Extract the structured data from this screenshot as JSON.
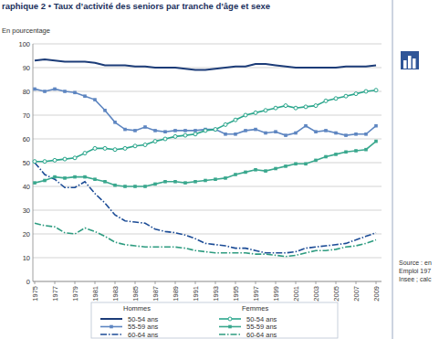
{
  "chart_data": {
    "type": "line",
    "title": "raphique 2 • Taux d’activité des seniors par tranche d’âge et sexe",
    "ylabel": "En pourcentage",
    "source": [
      "Source : en",
      "Emploi 197",
      "Insee ; calc"
    ],
    "x": [
      1975,
      1976,
      1977,
      1978,
      1979,
      1980,
      1981,
      1982,
      1983,
      1984,
      1985,
      1986,
      1987,
      1988,
      1989,
      1990,
      1991,
      1992,
      1993,
      1994,
      1995,
      1996,
      1997,
      1998,
      1999,
      2000,
      2001,
      2002,
      2003,
      2004,
      2005,
      2006,
      2007,
      2008,
      2009
    ],
    "xlim": [
      1975,
      2009
    ],
    "xticks": [
      1975,
      1977,
      1979,
      1981,
      1983,
      1985,
      1987,
      1989,
      1991,
      1993,
      1995,
      1997,
      1999,
      2001,
      2003,
      2005,
      2007,
      2009
    ],
    "ylim": [
      0,
      100
    ],
    "yticks": [
      0,
      10,
      20,
      30,
      40,
      50,
      60,
      70,
      80,
      90,
      100
    ],
    "grid": true,
    "series": [
      {
        "name": "50-54 ans",
        "group": "Hommes",
        "color": "#1c3c78",
        "marker": "none",
        "line_style": "solid",
        "values": [
          93,
          93.5,
          93,
          92.5,
          92.5,
          92.5,
          92,
          91,
          91,
          91,
          90.5,
          90.5,
          90,
          90,
          90,
          89.5,
          89,
          89,
          89.5,
          90,
          90.5,
          90.5,
          91.5,
          91.5,
          91,
          90.5,
          90,
          90,
          90,
          90,
          90,
          90.5,
          90.5,
          90.5,
          91
        ]
      },
      {
        "name": "55-59 ans",
        "group": "Hommes",
        "color": "#5e86c1",
        "marker": "square",
        "line_style": "solid",
        "values": [
          81,
          80,
          81,
          80,
          79.5,
          78,
          76.5,
          72,
          67,
          64,
          63.5,
          65,
          63.5,
          63,
          63.5,
          63.5,
          63.5,
          64,
          64,
          62,
          62,
          63.5,
          64,
          62.5,
          63,
          61.5,
          62.5,
          65.5,
          63,
          63.5,
          62.5,
          61.5,
          62,
          62,
          65.5
        ]
      },
      {
        "name": "60-64 ans",
        "group": "Hommes",
        "color": "#1c4c96",
        "marker": "none",
        "line_style": "dashdot",
        "values": [
          50,
          45,
          43,
          39.5,
          39.5,
          42,
          37,
          33,
          28,
          25.5,
          25,
          24.5,
          22,
          21,
          20.5,
          19.5,
          18,
          16,
          15.5,
          15,
          14,
          14,
          13,
          12,
          12,
          12,
          12.5,
          14,
          14.5,
          15,
          15.5,
          16,
          17.5,
          19,
          20.5
        ]
      },
      {
        "name": "50-54 ans",
        "group": "Femmes",
        "color": "#2aa68c",
        "marker": "circle",
        "line_style": "solid",
        "values": [
          50.5,
          50.5,
          51,
          51.5,
          52,
          54,
          56,
          56,
          55.5,
          56,
          57,
          57.5,
          59,
          60,
          61,
          61.5,
          62,
          63.5,
          64,
          66,
          68,
          70,
          71,
          72,
          73,
          74,
          73,
          73.5,
          74,
          76,
          77,
          78,
          79,
          80,
          80.5
        ]
      },
      {
        "name": "55-59 ans",
        "group": "Femmes",
        "color": "#3aa88e",
        "marker": "square",
        "line_style": "solid",
        "values": [
          41.5,
          42.5,
          44,
          43.5,
          44,
          44,
          43,
          42,
          40.5,
          40,
          40,
          40,
          41,
          42,
          42,
          41.5,
          42,
          42.5,
          43,
          43.5,
          45,
          46,
          47,
          46.5,
          47.5,
          48.5,
          49.5,
          49.5,
          51,
          52.5,
          53.5,
          54.5,
          55,
          55.5,
          59
        ]
      },
      {
        "name": "60-64 ans",
        "group": "Femmes",
        "color": "#2e9c80",
        "marker": "none",
        "line_style": "dashdot",
        "values": [
          24.5,
          23.5,
          23,
          20.5,
          20,
          22.5,
          21,
          19,
          16.5,
          15.5,
          15,
          14.5,
          14.5,
          14.5,
          14.5,
          14,
          13,
          12.5,
          12,
          12,
          12,
          12,
          11.5,
          11.5,
          11,
          10.5,
          11,
          12,
          13,
          13,
          13.5,
          14.5,
          15,
          16,
          17.5
        ]
      }
    ]
  }
}
